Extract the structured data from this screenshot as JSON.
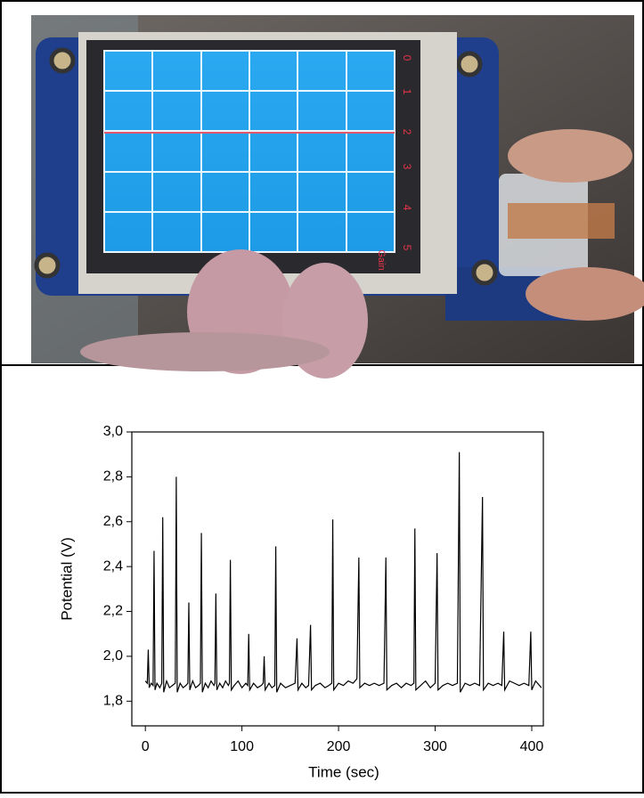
{
  "photo": {
    "scale_labels": [
      "0",
      "1",
      "2",
      "3",
      "4",
      "5"
    ],
    "gain_label": "Gain"
  },
  "chart_data": {
    "type": "line",
    "xlabel": "Time (sec)",
    "ylabel": "Potential (V)",
    "color": "#000000",
    "xlim": [
      -14,
      412
    ],
    "ylim": [
      1.69,
      3.0
    ],
    "xticks": [
      0,
      100,
      200,
      300,
      400
    ],
    "yticks": [
      {
        "value": 1.8,
        "label": "1,8"
      },
      {
        "value": 2.0,
        "label": "2,0"
      },
      {
        "value": 2.2,
        "label": "2,2"
      },
      {
        "value": 2.4,
        "label": "2,4"
      },
      {
        "value": 2.6,
        "label": "2,6"
      },
      {
        "value": 2.8,
        "label": "2,8"
      },
      {
        "value": 3.0,
        "label": "3,0"
      }
    ],
    "x": [
      0,
      2,
      3,
      4,
      6,
      8,
      9,
      10,
      12,
      15,
      17,
      18,
      19,
      22,
      25,
      28,
      31,
      32,
      33,
      36,
      39,
      42,
      44,
      45,
      46,
      49,
      52,
      55,
      57,
      58,
      59,
      62,
      65,
      68,
      71,
      72,
      73,
      74,
      77,
      80,
      83,
      86,
      87,
      88,
      89,
      92,
      96,
      100,
      104,
      106,
      107,
      108,
      112,
      116,
      120,
      122,
      123,
      124,
      128,
      131,
      134,
      135,
      136,
      140,
      145,
      150,
      155,
      157,
      158,
      162,
      166,
      169,
      171,
      172,
      176,
      181,
      186,
      190,
      193,
      194,
      195,
      200,
      205,
      210,
      215,
      219,
      221,
      222,
      227,
      232,
      237,
      242,
      247,
      249,
      250,
      255,
      260,
      265,
      270,
      275,
      278,
      279,
      280,
      285,
      290,
      295,
      300,
      302,
      303,
      308,
      313,
      318,
      323,
      325,
      326,
      331,
      336,
      341,
      346,
      349,
      350,
      355,
      360,
      365,
      369,
      371,
      372,
      377,
      382,
      387,
      392,
      397,
      399,
      400,
      404,
      408,
      410
    ],
    "values": [
      1.89,
      1.88,
      2.03,
      1.86,
      1.88,
      1.87,
      2.47,
      1.85,
      1.88,
      1.86,
      1.88,
      2.62,
      1.84,
      1.89,
      1.86,
      1.87,
      1.88,
      2.8,
      1.84,
      1.88,
      1.86,
      1.87,
      1.88,
      2.24,
      1.85,
      1.89,
      1.86,
      1.87,
      1.88,
      2.55,
      1.84,
      1.88,
      1.86,
      1.89,
      1.87,
      1.88,
      2.28,
      1.85,
      1.88,
      1.86,
      1.89,
      1.87,
      1.88,
      2.43,
      1.85,
      1.87,
      1.89,
      1.86,
      1.88,
      1.87,
      2.1,
      1.85,
      1.88,
      1.86,
      1.87,
      1.88,
      2.0,
      1.85,
      1.88,
      1.86,
      1.87,
      2.49,
      1.84,
      1.88,
      1.86,
      1.87,
      1.88,
      2.08,
      1.85,
      1.88,
      1.86,
      1.87,
      2.14,
      1.85,
      1.87,
      1.88,
      1.86,
      1.87,
      1.88,
      2.61,
      1.85,
      1.88,
      1.87,
      1.89,
      1.88,
      1.9,
      2.44,
      1.86,
      1.88,
      1.87,
      1.88,
      1.87,
      1.88,
      2.44,
      1.85,
      1.87,
      1.88,
      1.86,
      1.88,
      1.87,
      1.88,
      2.57,
      1.85,
      1.87,
      1.89,
      1.86,
      1.88,
      2.46,
      1.85,
      1.87,
      1.88,
      1.87,
      1.88,
      2.91,
      1.84,
      1.88,
      1.87,
      1.88,
      1.87,
      2.71,
      1.85,
      1.88,
      1.87,
      1.88,
      1.87,
      2.11,
      1.85,
      1.89,
      1.88,
      1.87,
      1.88,
      1.87,
      2.11,
      1.85,
      1.89,
      1.87,
      1.86
    ]
  }
}
